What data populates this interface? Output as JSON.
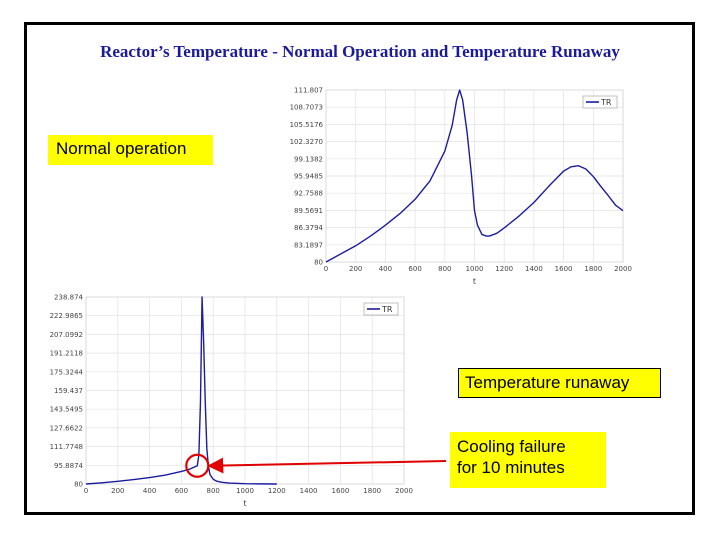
{
  "slide": {
    "title": "Reactor’s Temperature - Normal Operation and Temperature Runaway"
  },
  "callouts": {
    "normal_operation": "Normal operation",
    "temperature_runaway": "Temperature runaway",
    "cooling_failure": "Cooling failure\nfor 10 minutes"
  },
  "colors": {
    "title": "#1a1a9c",
    "callout_bg": "#ffff00",
    "series_line": "#1c1c9e",
    "arrow": "#e00000",
    "marker_circle": "#e00000"
  },
  "chart_data": [
    {
      "type": "line",
      "id": "normal",
      "xlabel": "t",
      "ylabel": "",
      "xlim": [
        0,
        2000
      ],
      "ylim": [
        80,
        111.807
      ],
      "x_ticks": [
        "0",
        "200",
        "400",
        "600",
        "800",
        "1000",
        "1200",
        "1400",
        "1600",
        "1800",
        "2000"
      ],
      "y_ticks": [
        "111.807",
        "108.7073",
        "105.5176",
        "102.3270",
        "99.1382",
        "95.9485",
        "92.7588",
        "89.5691",
        "86.3794",
        "83.1897",
        "80"
      ],
      "grid": true,
      "legend_position": "top-right",
      "series": [
        {
          "name": "TR",
          "x": [
            0,
            100,
            200,
            300,
            400,
            500,
            600,
            700,
            800,
            850,
            880,
            900,
            920,
            950,
            980,
            1000,
            1020,
            1050,
            1080,
            1100,
            1150,
            1200,
            1300,
            1400,
            1500,
            1600,
            1650,
            1700,
            1750,
            1800,
            1850,
            1900,
            1950,
            2000
          ],
          "y": [
            80,
            81.5,
            83,
            84.8,
            86.8,
            89,
            91.6,
            95,
            100.5,
            105.3,
            110,
            111.8,
            110,
            104,
            96,
            89.5,
            86.8,
            85.1,
            84.8,
            84.8,
            85.3,
            86.3,
            88.5,
            91,
            94,
            96.8,
            97.6,
            97.8,
            97.2,
            95.8,
            94,
            92.3,
            90.5,
            89.5
          ]
        }
      ]
    },
    {
      "type": "line",
      "id": "runaway",
      "xlabel": "t",
      "ylabel": "",
      "xlim": [
        0,
        2000
      ],
      "ylim": [
        80,
        238.874
      ],
      "x_ticks": [
        "0",
        "200",
        "400",
        "600",
        "800",
        "1000",
        "1200",
        "1400",
        "1600",
        "1800",
        "2000"
      ],
      "y_ticks": [
        "238.874",
        "222.9865",
        "207.0992",
        "191.2118",
        "175.3244",
        "159.437",
        "143.5495",
        "127.6622",
        "111.7748",
        "95.8874",
        "80"
      ],
      "grid": true,
      "legend_position": "top-right",
      "annotation": "cooling failure point near t≈700",
      "series": [
        {
          "name": "TR",
          "x": [
            0,
            100,
            200,
            300,
            400,
            500,
            600,
            650,
            700,
            710,
            720,
            730,
            740,
            750,
            760,
            770,
            780,
            800,
            820,
            850,
            900,
            1000,
            1100,
            1200
          ],
          "y": [
            80,
            81,
            82.3,
            83.8,
            85.5,
            87.6,
            90.7,
            92.5,
            95.5,
            105,
            150,
            238.874,
            200,
            150,
            110,
            95,
            88,
            84,
            82.5,
            81.5,
            80.8,
            80.3,
            80.1,
            80
          ]
        }
      ]
    }
  ]
}
